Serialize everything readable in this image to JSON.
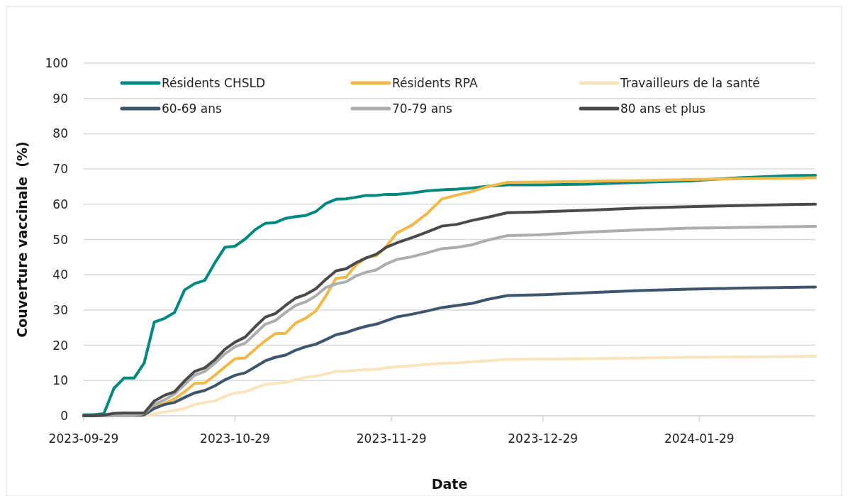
{
  "chart_data": {
    "type": "line",
    "xlabel": "Date",
    "ylabel": "Couverture vaccinale  (%)",
    "x": [
      "2023-09-29",
      "2023-10-01",
      "2023-10-03",
      "2023-10-05",
      "2023-10-07",
      "2023-10-09",
      "2023-10-11",
      "2023-10-13",
      "2023-10-15",
      "2023-10-17",
      "2023-10-19",
      "2023-10-21",
      "2023-10-23",
      "2023-10-25",
      "2023-10-27",
      "2023-10-29",
      "2023-10-31",
      "2023-11-02",
      "2023-11-04",
      "2023-11-06",
      "2023-11-08",
      "2023-11-10",
      "2023-11-12",
      "2023-11-14",
      "2023-11-16",
      "2023-11-18",
      "2023-11-20",
      "2023-11-22",
      "2023-11-24",
      "2023-11-26",
      "2023-11-28",
      "2023-11-30",
      "2023-12-03",
      "2023-12-06",
      "2023-12-09",
      "2023-12-12",
      "2023-12-15",
      "2023-12-18",
      "2023-12-22",
      "2023-12-28",
      "2024-01-07",
      "2024-01-17",
      "2024-01-27",
      "2024-02-06",
      "2024-02-16",
      "2024-02-21"
    ],
    "series": [
      {
        "name": "Résidents CHSLD",
        "color": "#00897f",
        "values": [
          0.3,
          0.3,
          0.6,
          7.8,
          10.7,
          10.7,
          15,
          26.6,
          27.6,
          29.3,
          35.7,
          37.5,
          38.4,
          43.4,
          47.8,
          48.1,
          50.1,
          52.8,
          54.6,
          54.8,
          56,
          56.5,
          56.8,
          57.9,
          60.2,
          61.4,
          61.5,
          62,
          62.5,
          62.5,
          62.8,
          62.8,
          63.2,
          63.8,
          64.1,
          64.3,
          64.6,
          65.1,
          65.5,
          65.5,
          65.7,
          66.2,
          66.6,
          67.5,
          68.1,
          68.2
        ]
      },
      {
        "name": "Résidents RPA",
        "color": "#f0b94a",
        "values": [
          null,
          null,
          null,
          null,
          null,
          null,
          0.5,
          2.5,
          3.5,
          4.8,
          6.8,
          9.2,
          9.3,
          11.5,
          13.9,
          16.2,
          16.4,
          18.9,
          21.3,
          23.3,
          23.4,
          26.3,
          27.7,
          29.7,
          34,
          39,
          39.3,
          42.8,
          44.8,
          45.4,
          48.1,
          51.8,
          54,
          57.3,
          61.5,
          62.6,
          63.6,
          65,
          66.2,
          66.3,
          66.5,
          66.7,
          67,
          67.2,
          67.4,
          67.5
        ]
      },
      {
        "name": "Travailleurs de la santé",
        "color": "#f8e5bd",
        "values": [
          0,
          0,
          0,
          0,
          0,
          0,
          0,
          0.5,
          1.1,
          1.5,
          2.1,
          3.2,
          3.8,
          4.2,
          5.5,
          6.5,
          6.8,
          7.9,
          8.9,
          9.2,
          9.5,
          10.2,
          10.9,
          11.2,
          11.9,
          12.6,
          12.7,
          12.9,
          13.1,
          13.2,
          13.6,
          13.9,
          14.2,
          14.6,
          14.9,
          15,
          15.3,
          15.6,
          16,
          16.1,
          16.2,
          16.4,
          16.6,
          16.7,
          16.8,
          16.9
        ]
      },
      {
        "name": "60-69 ans",
        "color": "#3d566e",
        "values": [
          0,
          0,
          0,
          0,
          0,
          0,
          0.3,
          2.1,
          3.2,
          3.8,
          5.2,
          6.5,
          7.2,
          8.5,
          10.2,
          11.5,
          12.2,
          13.9,
          15.6,
          16.6,
          17.2,
          18.6,
          19.6,
          20.3,
          21.6,
          23,
          23.6,
          24.6,
          25.4,
          26,
          27,
          28,
          28.8,
          29.7,
          30.7,
          31.3,
          31.9,
          33,
          34.1,
          34.3,
          34.9,
          35.5,
          35.9,
          36.2,
          36.4,
          36.5
        ]
      },
      {
        "name": "70-79 ans",
        "color": "#adadb0",
        "values": [
          0,
          0,
          0,
          0,
          0,
          0,
          0.7,
          3.2,
          4.5,
          6.2,
          8.9,
          11.5,
          12.6,
          14.9,
          17.6,
          19.6,
          20.6,
          23.3,
          26,
          27,
          29.3,
          31.3,
          32.3,
          34,
          36.4,
          37.4,
          38,
          39.7,
          40.7,
          41.4,
          43.1,
          44.3,
          45.1,
          46.2,
          47.4,
          47.8,
          48.5,
          49.8,
          51.1,
          51.3,
          52.1,
          52.7,
          53.2,
          53.4,
          53.6,
          53.7
        ]
      },
      {
        "name": "80 ans et plus",
        "color": "#4a4a4a",
        "values": [
          0,
          0,
          0.2,
          0.7,
          0.8,
          0.8,
          0.8,
          4.2,
          5.8,
          6.8,
          9.9,
          12.6,
          13.6,
          15.9,
          18.9,
          20.9,
          22.3,
          25.3,
          28,
          29,
          31.3,
          33.4,
          34.4,
          36,
          38.7,
          41.1,
          41.7,
          43.4,
          44.8,
          45.8,
          47.8,
          49,
          50.5,
          52.1,
          53.8,
          54.3,
          55.4,
          56.3,
          57.6,
          57.8,
          58.3,
          58.9,
          59.3,
          59.6,
          59.9,
          60
        ]
      }
    ],
    "xlim": [
      "2023-09-29",
      "2024-02-21"
    ],
    "xticks": [
      "2023-09-29",
      "2023-10-29",
      "2023-11-29",
      "2023-12-29",
      "2024-01-29"
    ],
    "ylim": [
      0,
      100
    ],
    "yticks": [
      0,
      10,
      20,
      30,
      40,
      50,
      60,
      70,
      80,
      90,
      100
    ],
    "grid": "y",
    "legend": "top",
    "marker": "none",
    "line_style": "solid"
  }
}
